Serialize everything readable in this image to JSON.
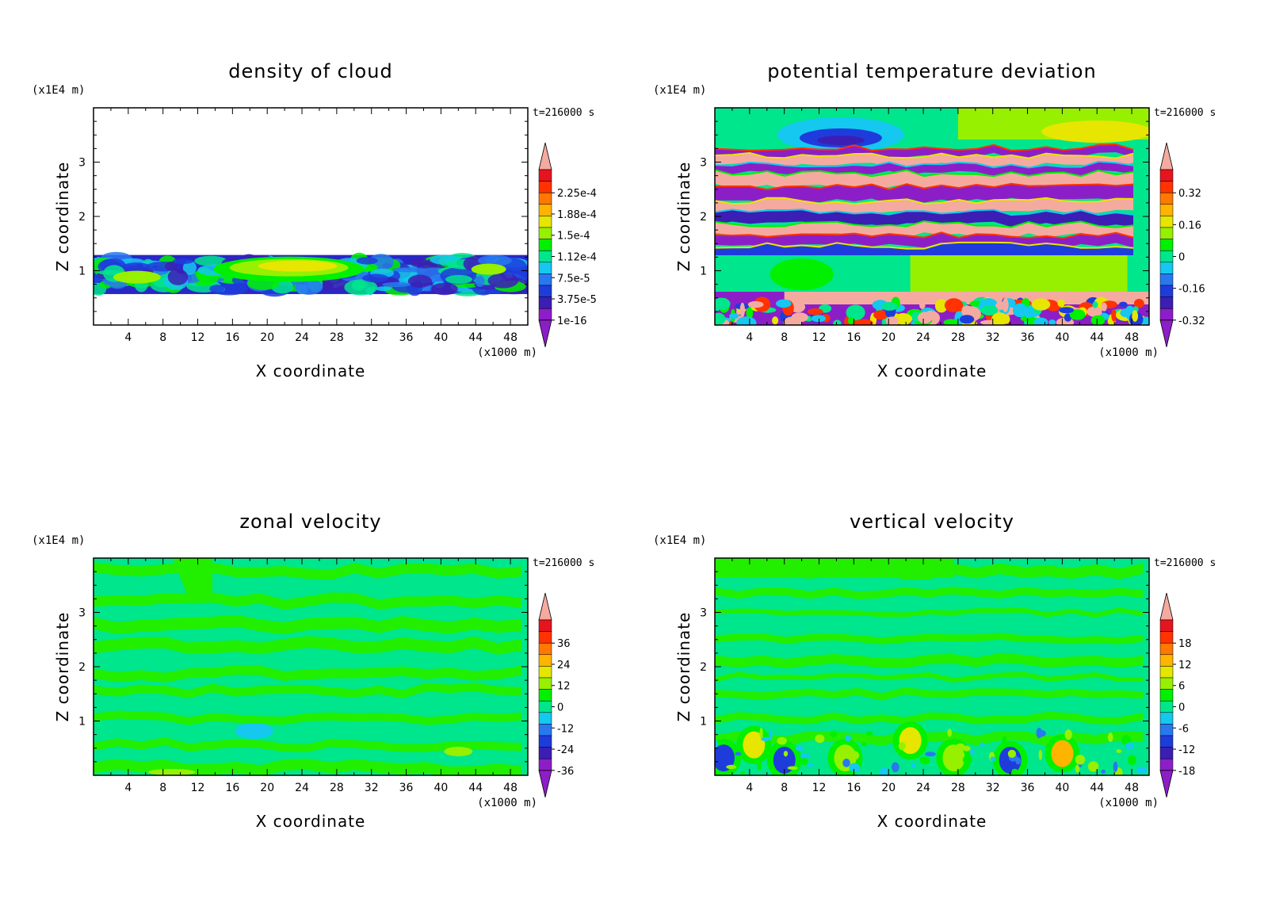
{
  "chart_data": [
    {
      "type": "heatmap",
      "title": "density of cloud",
      "xlabel": "X coordinate",
      "ylabel": "Z coordinate",
      "x_unit": "(x1000 m)",
      "y_unit": "(x1E4 m)",
      "timestamp": "t=216000 s",
      "xlim": [
        0,
        50
      ],
      "ylim": [
        0,
        4
      ],
      "x_ticks": [
        "4",
        "8",
        "12",
        "16",
        "20",
        "24",
        "28",
        "32",
        "36",
        "40",
        "44",
        "48"
      ],
      "y_ticks": [
        "1",
        "2",
        "3"
      ],
      "colorbar_labels": [
        "2.25e-4",
        "1.88e-4",
        "1.5e-4",
        "1.12e-4",
        "7.5e-5",
        "3.75e-5",
        "1e-16"
      ],
      "field": "cloud"
    },
    {
      "type": "heatmap",
      "title": "potential temperature deviation",
      "xlabel": "X coordinate",
      "ylabel": "Z coordinate",
      "x_unit": "(x1000 m)",
      "y_unit": "(x1E4 m)",
      "timestamp": "t=216000 s",
      "xlim": [
        0,
        50
      ],
      "ylim": [
        0,
        4
      ],
      "x_ticks": [
        "4",
        "8",
        "12",
        "16",
        "20",
        "24",
        "28",
        "32",
        "36",
        "40",
        "44",
        "48"
      ],
      "y_ticks": [
        "1",
        "2",
        "3"
      ],
      "colorbar_labels": [
        "0.32",
        "0.16",
        "0",
        "-0.16",
        "-0.32"
      ],
      "field": "theta"
    },
    {
      "type": "heatmap",
      "title": "zonal velocity",
      "xlabel": "X coordinate",
      "ylabel": "Z coordinate",
      "x_unit": "(x1000 m)",
      "y_unit": "(x1E4 m)",
      "timestamp": "t=216000 s",
      "xlim": [
        0,
        50
      ],
      "ylim": [
        0,
        4
      ],
      "x_ticks": [
        "4",
        "8",
        "12",
        "16",
        "20",
        "24",
        "28",
        "32",
        "36",
        "40",
        "44",
        "48"
      ],
      "y_ticks": [
        "1",
        "2",
        "3"
      ],
      "colorbar_labels": [
        "36",
        "24",
        "12",
        "0",
        "-12",
        "-24",
        "-36"
      ],
      "field": "zonal"
    },
    {
      "type": "heatmap",
      "title": "vertical velocity",
      "xlabel": "X coordinate",
      "ylabel": "Z coordinate",
      "x_unit": "(x1000 m)",
      "y_unit": "(x1E4 m)",
      "timestamp": "t=216000 s",
      "xlim": [
        0,
        50
      ],
      "ylim": [
        0,
        4
      ],
      "x_ticks": [
        "4",
        "8",
        "12",
        "16",
        "20",
        "24",
        "28",
        "32",
        "36",
        "40",
        "44",
        "48"
      ],
      "y_ticks": [
        "1",
        "2",
        "3"
      ],
      "colorbar_labels": [
        "18",
        "12",
        "6",
        "0",
        "-6",
        "-12",
        "-18"
      ],
      "field": "vertical"
    }
  ],
  "colors": {
    "colorbar": [
      "#8c1ec8",
      "#3c1eb4",
      "#1e3cdc",
      "#2878f0",
      "#14c8f0",
      "#00e68c",
      "#00f000",
      "#96f000",
      "#e6e600",
      "#ffb400",
      "#ff7800",
      "#ff3200",
      "#e6141e",
      "#f5aaa0"
    ],
    "background_green": "#00ee88",
    "light_green": "#22ee00"
  }
}
